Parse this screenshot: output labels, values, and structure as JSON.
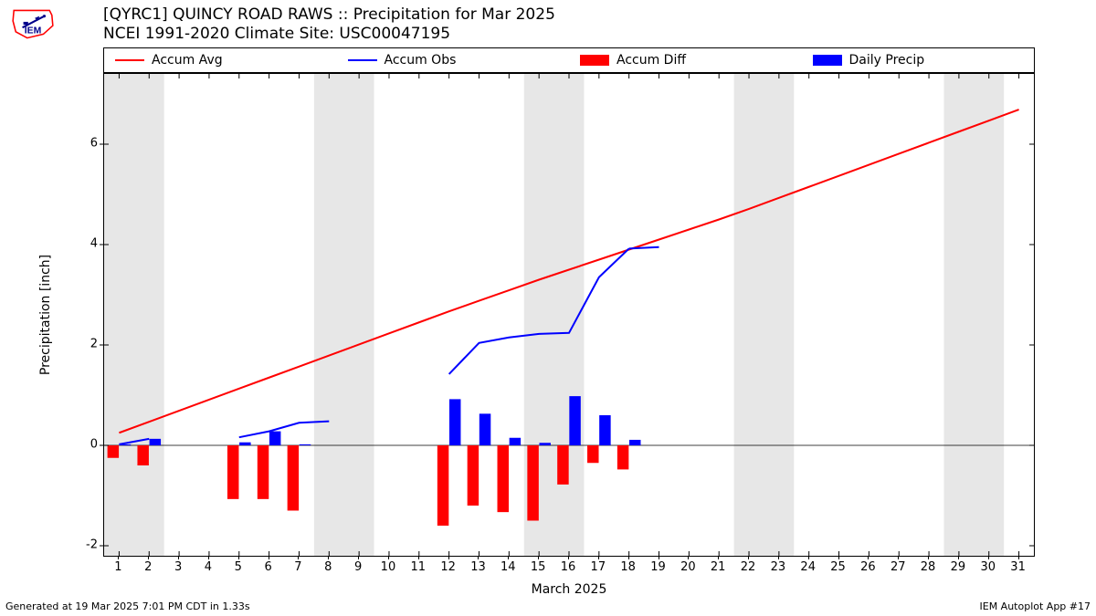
{
  "title_line1": "[QYRC1] QUINCY ROAD RAWS :: Precipitation for Mar 2025",
  "title_line2": "NCEI 1991-2020 Climate Site: USC00047195",
  "footer_left": "Generated at 19 Mar 2025 7:01 PM CDT in 1.33s",
  "footer_right": "IEM Autoplot App #17",
  "ylabel": "Precipitation [inch]",
  "xlabel": "March 2025",
  "legend": [
    {
      "type": "line",
      "color": "#ff0000",
      "label": "Accum Avg"
    },
    {
      "type": "line",
      "color": "#0000ff",
      "label": "Accum Obs"
    },
    {
      "type": "rect",
      "color": "#ff0000",
      "label": "Accum Diff"
    },
    {
      "type": "rect",
      "color": "#0000ff",
      "label": "Daily Precip"
    }
  ],
  "logo_colors": {
    "state": "#ff0000",
    "instrument": "#00008b"
  },
  "chart": {
    "type": "combo-bar-line",
    "x_domain": [
      0.5,
      31.5
    ],
    "y_domain": [
      -2.2,
      7.4
    ],
    "x_ticks": [
      1,
      2,
      3,
      4,
      5,
      6,
      7,
      8,
      9,
      10,
      11,
      12,
      13,
      14,
      15,
      16,
      17,
      18,
      19,
      20,
      21,
      22,
      23,
      24,
      25,
      26,
      27,
      28,
      29,
      30,
      31
    ],
    "y_ticks": [
      -2,
      0,
      2,
      4,
      6
    ],
    "weekend_bands": [
      [
        1,
        2
      ],
      [
        8,
        9
      ],
      [
        15,
        16
      ],
      [
        22,
        23
      ],
      [
        29,
        30
      ]
    ],
    "weekend_color": "#e7e7e7",
    "zero_line_color": "#000000",
    "accum_avg": {
      "color": "#ff0000",
      "width": 2,
      "x": [
        1,
        2,
        3,
        4,
        5,
        6,
        7,
        8,
        9,
        10,
        11,
        12,
        13,
        14,
        15,
        16,
        17,
        18,
        19,
        20,
        21,
        22,
        23,
        24,
        25,
        26,
        27,
        28,
        29,
        30,
        31
      ],
      "y": [
        0.25,
        0.47,
        0.69,
        0.91,
        1.13,
        1.35,
        1.57,
        1.79,
        2.01,
        2.23,
        2.45,
        2.67,
        2.88,
        3.09,
        3.3,
        3.5,
        3.7,
        3.9,
        4.1,
        4.3,
        4.5,
        4.71,
        4.93,
        5.15,
        5.37,
        5.59,
        5.81,
        6.03,
        6.25,
        6.47,
        6.69
      ]
    },
    "accum_obs": {
      "color": "#0000ff",
      "width": 2,
      "segments": [
        {
          "x": [
            1,
            2
          ],
          "y": [
            0.02,
            0.13
          ]
        },
        {
          "x": [
            5,
            6,
            7,
            8
          ],
          "y": [
            0.16,
            0.28,
            0.45,
            0.48
          ]
        },
        {
          "x": [
            12,
            13,
            14,
            15,
            16,
            17,
            18
          ],
          "y": [
            1.42,
            2.04,
            2.15,
            2.22,
            2.24,
            3.35,
            3.92
          ]
        },
        {
          "x": [
            18,
            19
          ],
          "y": [
            3.92,
            3.95
          ]
        }
      ]
    },
    "accum_diff_bars": {
      "color": "#ff0000",
      "width": 0.38,
      "offset": -0.2,
      "data": [
        {
          "x": 1,
          "y": -0.25
        },
        {
          "x": 2,
          "y": -0.4
        },
        {
          "x": 5,
          "y": -1.07
        },
        {
          "x": 6,
          "y": -1.07
        },
        {
          "x": 7,
          "y": -1.3
        },
        {
          "x": 12,
          "y": -1.6
        },
        {
          "x": 13,
          "y": -1.2
        },
        {
          "x": 14,
          "y": -1.33
        },
        {
          "x": 15,
          "y": -1.5
        },
        {
          "x": 16,
          "y": -0.78
        },
        {
          "x": 17,
          "y": -0.35
        },
        {
          "x": 18,
          "y": -0.48
        }
      ]
    },
    "daily_precip_bars": {
      "color": "#0000ff",
      "width": 0.38,
      "offset": 0.2,
      "data": [
        {
          "x": 1,
          "y": 0.02
        },
        {
          "x": 2,
          "y": 0.13
        },
        {
          "x": 5,
          "y": 0.06
        },
        {
          "x": 6,
          "y": 0.28
        },
        {
          "x": 7,
          "y": 0.02
        },
        {
          "x": 12,
          "y": 0.92
        },
        {
          "x": 13,
          "y": 0.63
        },
        {
          "x": 14,
          "y": 0.15
        },
        {
          "x": 15,
          "y": 0.05
        },
        {
          "x": 16,
          "y": 0.98
        },
        {
          "x": 17,
          "y": 0.6
        },
        {
          "x": 18,
          "y": 0.11
        }
      ]
    },
    "bg": "#ffffff",
    "title_fontsize": 17,
    "tick_fontsize": 13,
    "label_fontsize": 14
  }
}
